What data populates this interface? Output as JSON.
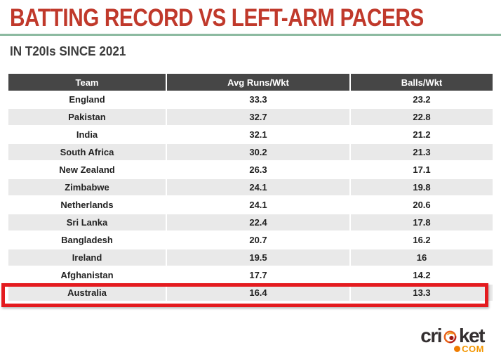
{
  "header": {
    "title": "BATTING RECORD VS LEFT-ARM PACERS",
    "subtitle": "IN T20Is SINCE 2021"
  },
  "colors": {
    "title_red": "#c0392b",
    "divider_green": "#8cbaa0",
    "table_header_bg": "#464646",
    "row_alt_gray": "#e9e9e9",
    "highlight_red": "#e41b1f",
    "logo_orange": "#f39600"
  },
  "chart_data": {
    "type": "table",
    "title": "BATTING RECORD VS LEFT-ARM PACERS",
    "subtitle": "IN T20Is SINCE 2021",
    "columns": [
      "Team",
      "Avg Runs/Wkt",
      "Balls/Wkt"
    ],
    "rows": [
      [
        "England",
        "33.3",
        "23.2"
      ],
      [
        "Pakistan",
        "32.7",
        "22.8"
      ],
      [
        "India",
        "32.1",
        "21.2"
      ],
      [
        "South Africa",
        "30.2",
        "21.3"
      ],
      [
        "New Zealand",
        "26.3",
        "17.1"
      ],
      [
        "Zimbabwe",
        "24.1",
        "19.8"
      ],
      [
        "Netherlands",
        "24.1",
        "20.6"
      ],
      [
        "Sri Lanka",
        "22.4",
        "17.8"
      ],
      [
        "Bangladesh",
        "20.7",
        "16.2"
      ],
      [
        "Ireland",
        "19.5",
        "16"
      ],
      [
        "Afghanistan",
        "17.7",
        "14.2"
      ],
      [
        "Australia",
        "16.4",
        "13.3"
      ]
    ],
    "highlighted_row": "Australia",
    "layout": {
      "zebra_striping": true,
      "highlight_style": "red-border"
    }
  },
  "logo": {
    "word_left": "cri",
    "word_right": "ket",
    "tld": "com",
    "ball_icon": "cricket-ball-icon"
  }
}
